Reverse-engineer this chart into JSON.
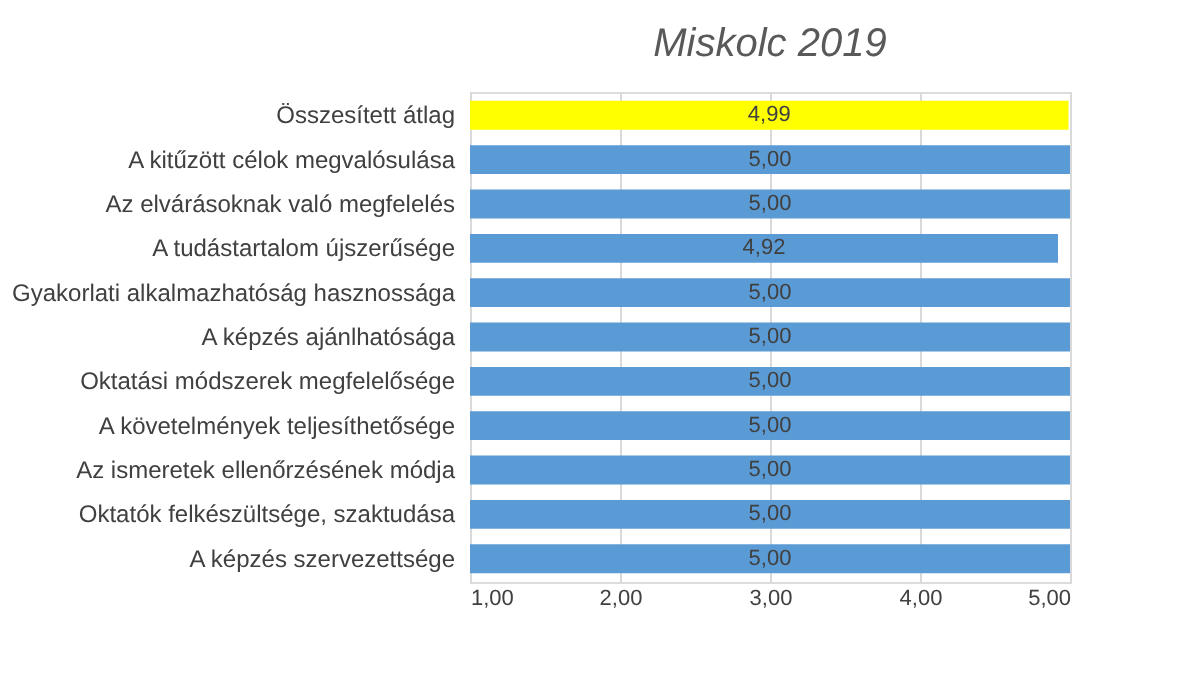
{
  "chart_data": {
    "type": "bar",
    "orientation": "horizontal",
    "title": "Miskolc 2019",
    "categories": [
      "Összesített átlag",
      "A kitűzött célok megvalósulása",
      "Az elvárásoknak való megfelelés",
      "A tudástartalom újszerűsége",
      "Gyakorlati alkalmazhatóság hasznossága",
      "A képzés ajánlhatósága",
      "Oktatási módszerek megfelelősége",
      "A követelmények teljesíthetősége",
      "Az ismeretek ellenőrzésének módja",
      "Oktatók felkészültsége, szaktudása",
      "A képzés szervezettsége"
    ],
    "values": [
      4.99,
      5.0,
      5.0,
      4.92,
      5.0,
      5.0,
      5.0,
      5.0,
      5.0,
      5.0,
      5.0
    ],
    "colors": [
      "#ffff00",
      "#5b9bd5",
      "#5b9bd5",
      "#5b9bd5",
      "#5b9bd5",
      "#5b9bd5",
      "#5b9bd5",
      "#5b9bd5",
      "#5b9bd5",
      "#5b9bd5",
      "#5b9bd5"
    ],
    "value_labels": [
      "4,99",
      "5,00",
      "5,00",
      "4,92",
      "5,00",
      "5,00",
      "5,00",
      "5,00",
      "5,00",
      "5,00",
      "5,00"
    ],
    "xlim": [
      1,
      5
    ],
    "xticks": [
      {
        "value": 1,
        "label": "1,00"
      },
      {
        "value": 2,
        "label": "2,00"
      },
      {
        "value": 3,
        "label": "3,00"
      },
      {
        "value": 4,
        "label": "4,00"
      },
      {
        "value": 5,
        "label": "5,00"
      }
    ],
    "grid": "x"
  }
}
